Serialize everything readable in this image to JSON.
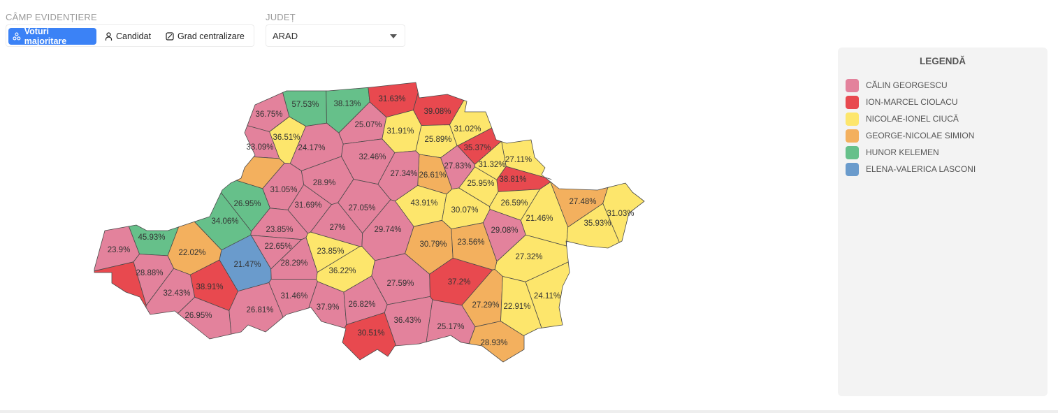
{
  "controls": {
    "highlight_label": "CÂMP EVIDENȚIERE",
    "buttons": [
      {
        "label": "Voturi majoritare",
        "icon": "nodes-icon",
        "active": true
      },
      {
        "label": "Candidat",
        "icon": "person-icon",
        "active": false
      },
      {
        "label": "Grad centralizare",
        "icon": "square-slash-icon",
        "active": false
      }
    ],
    "county_label": "JUDEȚ",
    "county_value": "ARAD"
  },
  "legend": {
    "title": "LEGENDĂ",
    "items": [
      {
        "key": "georgescu",
        "label": "CĂLIN GEORGESCU",
        "color": "#e3829c"
      },
      {
        "key": "ciolacu",
        "label": "ION-MARCEL CIOLACU",
        "color": "#e8494f"
      },
      {
        "key": "ciuca",
        "label": "NICOLAE-IONEL CIUCĂ",
        "color": "#fde66c"
      },
      {
        "key": "simion",
        "label": "GEORGE-NICOLAE SIMION",
        "color": "#f3b05e"
      },
      {
        "key": "kelemen",
        "label": "HUNOR KELEMEN",
        "color": "#66c08a"
      },
      {
        "key": "lasconi",
        "label": "ELENA-VALERICA LASCONI",
        "color": "#6a9bcc"
      }
    ]
  },
  "map": {
    "regions": [
      {
        "pct": "36.75%",
        "winner": "georgescu"
      },
      {
        "pct": "57.53%",
        "winner": "kelemen"
      },
      {
        "pct": "38.13%",
        "winner": "kelemen"
      },
      {
        "pct": "31.63%",
        "winner": "ciolacu"
      },
      {
        "pct": "39.08%",
        "winner": "ciolacu"
      },
      {
        "pct": "25.07%",
        "winner": "georgescu"
      },
      {
        "pct": "31.02%",
        "winner": "ciuca"
      },
      {
        "pct": "36.51%",
        "winner": "ciuca"
      },
      {
        "pct": "33.09%",
        "winner": "georgescu"
      },
      {
        "pct": "24.17%",
        "winner": "georgescu"
      },
      {
        "pct": "31.91%",
        "winner": "ciuca"
      },
      {
        "pct": "25.89%",
        "winner": "ciuca"
      },
      {
        "pct": "35.37%",
        "winner": "ciolacu"
      },
      {
        "pct": "32.46%",
        "winner": "georgescu"
      },
      {
        "pct": "27.11%",
        "winner": "ciuca"
      },
      {
        "pct": "27.83%",
        "winner": "georgescu"
      },
      {
        "pct": "31.32%",
        "winner": "ciuca"
      },
      {
        "pct": "26.61%",
        "winner": "simion"
      },
      {
        "pct": "27.34%",
        "winner": "georgescu"
      },
      {
        "pct": "38.81%",
        "winner": "ciolacu"
      },
      {
        "pct": "25.95%",
        "winner": "ciuca"
      },
      {
        "pct": "28.9%",
        "winner": "georgescu"
      },
      {
        "pct": "31.05%",
        "winner": "georgescu"
      },
      {
        "pct": "26.95%",
        "winner": "kelemen"
      },
      {
        "pct": "31.69%",
        "winner": "georgescu"
      },
      {
        "pct": "27.05%",
        "winner": "georgescu"
      },
      {
        "pct": "43.91%",
        "winner": "ciuca"
      },
      {
        "pct": "30.07%",
        "winner": "ciuca"
      },
      {
        "pct": "26.59%",
        "winner": "ciuca"
      },
      {
        "pct": "27.48%",
        "winner": "simion"
      },
      {
        "pct": "31.03%",
        "winner": "ciuca"
      },
      {
        "pct": "34.06%",
        "winner": "kelemen"
      },
      {
        "pct": "23.85%",
        "winner": "georgescu"
      },
      {
        "pct": "27%",
        "winner": "georgescu"
      },
      {
        "pct": "29.74%",
        "winner": "georgescu"
      },
      {
        "pct": "21.46%",
        "winner": "ciuca"
      },
      {
        "pct": "35.93%",
        "winner": "ciuca"
      },
      {
        "pct": "29.08%",
        "winner": "georgescu"
      },
      {
        "pct": "45.93%",
        "winner": "kelemen"
      },
      {
        "pct": "23.9%",
        "winner": "georgescu"
      },
      {
        "pct": "22.02%",
        "winner": "simion"
      },
      {
        "pct": "22.65%",
        "winner": "georgescu"
      },
      {
        "pct": "30.79%",
        "winner": "simion"
      },
      {
        "pct": "23.56%",
        "winner": "simion"
      },
      {
        "pct": "23.85%",
        "winner": "ciuca"
      },
      {
        "pct": "21.47%",
        "winner": "lasconi"
      },
      {
        "pct": "28.29%",
        "winner": "georgescu"
      },
      {
        "pct": "36.22%",
        "winner": "ciuca"
      },
      {
        "pct": "27.32%",
        "winner": "ciuca"
      },
      {
        "pct": "28.88%",
        "winner": "georgescu"
      },
      {
        "pct": "38.91%",
        "winner": "ciolacu"
      },
      {
        "pct": "32.43%",
        "winner": "georgescu"
      },
      {
        "pct": "27.59%",
        "winner": "georgescu"
      },
      {
        "pct": "37.2%",
        "winner": "ciolacu"
      },
      {
        "pct": "31.46%",
        "winner": "georgescu"
      },
      {
        "pct": "24.11%",
        "winner": "ciuca"
      },
      {
        "pct": "27.29%",
        "winner": "simion"
      },
      {
        "pct": "22.91%",
        "winner": "ciuca"
      },
      {
        "pct": "37.9%",
        "winner": "georgescu"
      },
      {
        "pct": "26.82%",
        "winner": "georgescu"
      },
      {
        "pct": "26.81%",
        "winner": "georgescu"
      },
      {
        "pct": "36.43%",
        "winner": "georgescu"
      },
      {
        "pct": "26.95%",
        "winner": "georgescu"
      },
      {
        "pct": "25.17%",
        "winner": "georgescu"
      },
      {
        "pct": "30.51%",
        "winner": "ciolacu"
      },
      {
        "pct": "28.93%",
        "winner": "simion"
      },
      {
        "pct": "",
        "winner": "ciolacu"
      },
      {
        "pct": "",
        "winner": "simion"
      }
    ]
  }
}
